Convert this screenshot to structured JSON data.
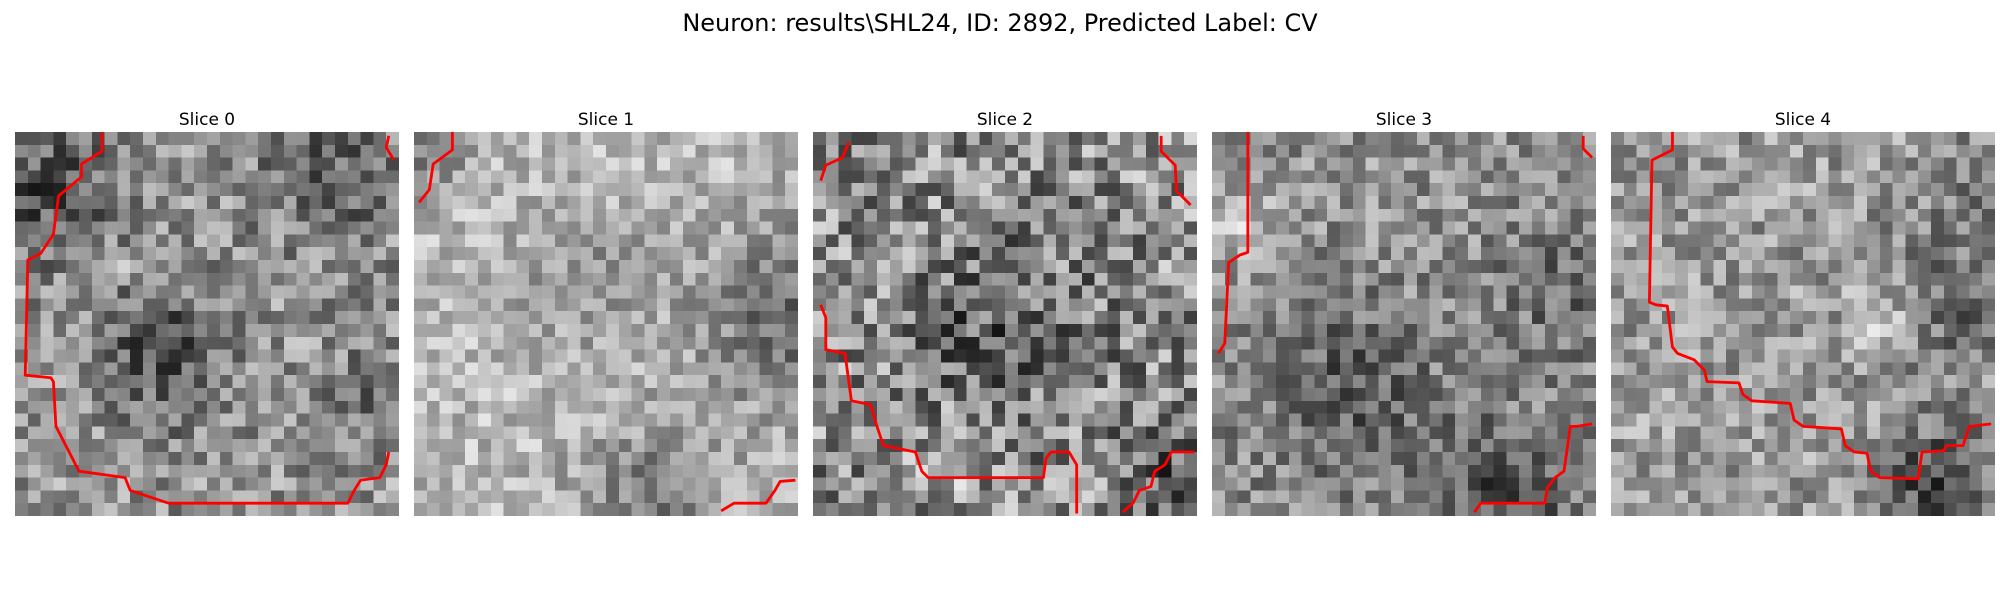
{
  "figure": {
    "title": "Neuron: results\\SHL24, ID: 2892, Predicted Label: CV"
  },
  "colors": {
    "contour": "#ff0000",
    "background": "#ffffff"
  },
  "grid_size": 30,
  "panels": [
    {
      "title": "Slice 0",
      "pixel_style": {
        "seed": 11,
        "base": 150,
        "contrast": 60,
        "dark_spots": [
          [
            11,
            17,
            4,
            70
          ],
          [
            2,
            4,
            4,
            70
          ],
          [
            24,
            3,
            4,
            55
          ],
          [
            28,
            20,
            3,
            40
          ]
        ],
        "bright_spots": [
          [
            9,
            10,
            1,
            60
          ]
        ]
      },
      "contours": [
        [
          [
            6.8,
            0
          ],
          [
            6.8,
            1.5
          ],
          [
            5.2,
            2.5
          ],
          [
            5.2,
            3.5
          ],
          [
            3.4,
            5
          ],
          [
            3,
            8
          ],
          [
            2,
            9.5
          ],
          [
            1,
            10
          ],
          [
            0.8,
            19
          ],
          [
            2.8,
            19.2
          ],
          [
            3,
            19.5
          ],
          [
            3.2,
            23
          ],
          [
            5,
            26.5
          ],
          [
            8.6,
            27
          ],
          [
            9,
            28
          ],
          [
            12,
            29
          ],
          [
            26,
            29
          ],
          [
            26.5,
            28
          ],
          [
            27,
            27.2
          ],
          [
            28.5,
            27
          ],
          [
            29,
            26
          ],
          [
            29.2,
            25
          ]
        ],
        [
          [
            29.2,
            0.3
          ],
          [
            29,
            1.2
          ],
          [
            29.6,
            2.2
          ]
        ]
      ]
    },
    {
      "title": "Slice 1",
      "pixel_style": {
        "seed": 23,
        "base": 185,
        "contrast": 45,
        "dark_spots": [
          [
            29,
            14,
            5,
            80
          ],
          [
            0,
            0,
            3,
            60
          ],
          [
            18,
            28,
            4,
            60
          ],
          [
            13,
            11,
            4,
            35
          ]
        ],
        "bright_spots": []
      },
      "contours": [
        [
          [
            3,
            0
          ],
          [
            3,
            1.4
          ],
          [
            1.5,
            2.5
          ],
          [
            1.2,
            4.5
          ],
          [
            0.4,
            5.5
          ]
        ],
        [
          [
            24,
            29.6
          ],
          [
            25,
            29
          ],
          [
            27.5,
            29
          ],
          [
            28.2,
            28
          ],
          [
            28.6,
            27.3
          ],
          [
            29.8,
            27.2
          ]
        ]
      ]
    },
    {
      "title": "Slice 2",
      "pixel_style": {
        "seed": 37,
        "base": 140,
        "contrast": 80,
        "dark_spots": [
          [
            14,
            15,
            5,
            45
          ],
          [
            28,
            26,
            3,
            55
          ]
        ],
        "bright_spots": [
          [
            10,
            25,
            2,
            40
          ]
        ]
      },
      "contours": [
        [
          [
            2.8,
            0.8
          ],
          [
            2.3,
            2
          ],
          [
            1,
            2.6
          ],
          [
            0.6,
            3.8
          ]
        ],
        [
          [
            27.2,
            0.3
          ],
          [
            27.2,
            1.5
          ],
          [
            28.3,
            2.6
          ],
          [
            28.4,
            4.6
          ],
          [
            29.5,
            5.7
          ]
        ],
        [
          [
            0.6,
            13.5
          ],
          [
            1,
            14.5
          ],
          [
            1,
            17
          ],
          [
            2.5,
            17.3
          ],
          [
            3,
            21
          ],
          [
            4.5,
            21.3
          ],
          [
            5,
            23
          ],
          [
            5.5,
            24.5
          ],
          [
            8,
            25
          ],
          [
            8.5,
            26.5
          ],
          [
            9,
            27
          ],
          [
            18,
            27
          ],
          [
            18.2,
            25.5
          ],
          [
            18.6,
            25
          ],
          [
            20,
            25
          ],
          [
            20.6,
            26
          ],
          [
            20.6,
            29.8
          ]
        ],
        [
          [
            24.2,
            29.7
          ],
          [
            25,
            29
          ],
          [
            25.5,
            28
          ],
          [
            26.4,
            27.7
          ],
          [
            26.7,
            26.5
          ],
          [
            27.5,
            26
          ],
          [
            28,
            25
          ],
          [
            29.8,
            25
          ]
        ]
      ]
    },
    {
      "title": "Slice 3",
      "pixel_style": {
        "seed": 53,
        "base": 145,
        "contrast": 55,
        "dark_spots": [
          [
            10,
            20,
            5,
            55
          ],
          [
            22,
            28,
            4,
            65
          ],
          [
            27,
            12,
            4,
            40
          ]
        ],
        "bright_spots": [
          [
            2,
            7,
            2,
            60
          ]
        ]
      },
      "contours": [
        [
          [
            2.8,
            0
          ],
          [
            2.8,
            9.4
          ],
          [
            2.2,
            9.6
          ],
          [
            1.3,
            10.2
          ],
          [
            1,
            16.5
          ],
          [
            0.5,
            17.3
          ]
        ],
        [
          [
            29,
            0.3
          ],
          [
            29,
            1.3
          ],
          [
            29.7,
            2
          ]
        ],
        [
          [
            20.5,
            29.7
          ],
          [
            21,
            29
          ],
          [
            26,
            29
          ],
          [
            26.2,
            27.8
          ],
          [
            26.8,
            27
          ],
          [
            27.5,
            26.5
          ],
          [
            28,
            23
          ],
          [
            28.5,
            23
          ],
          [
            29.7,
            22.8
          ]
        ]
      ]
    },
    {
      "title": "Slice 4",
      "pixel_style": {
        "seed": 71,
        "base": 155,
        "contrast": 55,
        "dark_spots": [
          [
            25,
            27,
            3,
            90
          ],
          [
            26,
            13,
            4,
            50
          ],
          [
            28,
            3,
            3,
            30
          ]
        ],
        "bright_spots": [
          [
            21,
            14,
            2,
            50
          ]
        ]
      },
      "contours": [
        [
          [
            4.8,
            0
          ],
          [
            4.8,
            1.4
          ],
          [
            3.2,
            2.2
          ],
          [
            3,
            13.3
          ],
          [
            3.5,
            13.5
          ],
          [
            4.4,
            13.6
          ],
          [
            4.8,
            16.8
          ],
          [
            5.2,
            17.3
          ],
          [
            6.5,
            17.8
          ],
          [
            7.3,
            18.6
          ],
          [
            7.5,
            19.5
          ],
          [
            10,
            19.6
          ],
          [
            10.3,
            20.5
          ],
          [
            11,
            21
          ],
          [
            14,
            21.2
          ],
          [
            14.3,
            22.5
          ],
          [
            15,
            23
          ],
          [
            18,
            23.2
          ],
          [
            18.3,
            24.5
          ],
          [
            19,
            25
          ],
          [
            20,
            25.1
          ],
          [
            20.3,
            26.5
          ],
          [
            21,
            27
          ],
          [
            24,
            27.1
          ],
          [
            24.3,
            25
          ],
          [
            26,
            24.9
          ],
          [
            26.2,
            24.5
          ],
          [
            27.5,
            24.5
          ],
          [
            28,
            23
          ],
          [
            29.7,
            22.8
          ]
        ]
      ]
    }
  ]
}
